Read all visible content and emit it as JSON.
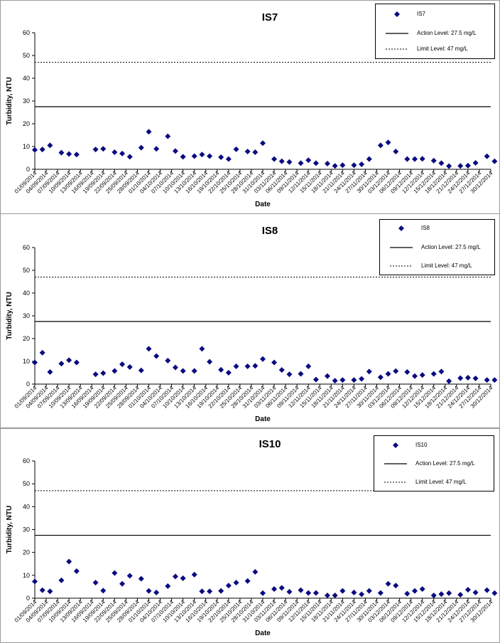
{
  "legend_labels": {
    "action": "Action Level: 27.5 mg/L",
    "limit": "Limit Level: 47 mg/L"
  },
  "colors": {
    "marker": "#0a0a80",
    "line": "#000000"
  },
  "chart_data": [
    {
      "type": "scatter",
      "title": "IS7",
      "xlabel": "Date",
      "ylabel": "Turbidity, NTU",
      "ylim": [
        0,
        60
      ],
      "yticks": [
        0,
        10,
        20,
        30,
        40,
        50,
        60
      ],
      "grid": false,
      "legend_position": "top-right",
      "x_range": [
        "2014-09-01",
        "2014-12-30"
      ],
      "xtick_labels": [
        "01/09/2014",
        "04/09/2014",
        "07/09/2014",
        "10/09/2014",
        "13/09/2014",
        "16/09/2014",
        "19/09/2014",
        "22/09/2014",
        "25/09/2014",
        "28/09/2014",
        "01/10/2014",
        "04/10/2014",
        "07/10/2014",
        "10/10/2014",
        "13/10/2014",
        "16/10/2014",
        "19/10/2014",
        "22/10/2014",
        "25/10/2014",
        "28/10/2014",
        "31/10/2014",
        "03/11/2014",
        "06/11/2014",
        "09/11/2014",
        "12/11/2014",
        "15/11/2014",
        "18/11/2014",
        "21/11/2014",
        "24/11/2014",
        "27/11/2014",
        "30/11/2014",
        "03/12/2014",
        "06/12/2014",
        "09/12/2014",
        "12/12/2014",
        "15/12/2014",
        "18/12/2014",
        "21/12/2014",
        "24/12/2014",
        "27/12/2014",
        "30/12/2014"
      ],
      "series": [
        {
          "name": "IS7",
          "kind": "points",
          "points": [
            [
              "2014-09-01",
              8.5
            ],
            [
              "2014-09-03",
              8.7
            ],
            [
              "2014-09-05",
              10.5
            ],
            [
              "2014-09-08",
              7.3
            ],
            [
              "2014-09-10",
              6.7
            ],
            [
              "2014-09-12",
              6.5
            ],
            [
              "2014-09-17",
              8.7
            ],
            [
              "2014-09-19",
              9.0
            ],
            [
              "2014-09-22",
              7.5
            ],
            [
              "2014-09-24",
              6.9
            ],
            [
              "2014-09-26",
              5.5
            ],
            [
              "2014-09-29",
              9.5
            ],
            [
              "2014-10-01",
              16.5
            ],
            [
              "2014-10-03",
              9.0
            ],
            [
              "2014-10-06",
              14.5
            ],
            [
              "2014-10-08",
              8.0
            ],
            [
              "2014-10-10",
              5.5
            ],
            [
              "2014-10-13",
              5.8
            ],
            [
              "2014-10-15",
              6.5
            ],
            [
              "2014-10-17",
              5.8
            ],
            [
              "2014-10-20",
              5.3
            ],
            [
              "2014-10-22",
              4.5
            ],
            [
              "2014-10-24",
              8.8
            ],
            [
              "2014-10-27",
              7.8
            ],
            [
              "2014-10-29",
              7.5
            ],
            [
              "2014-10-31",
              11.5
            ],
            [
              "2014-11-03",
              4.5
            ],
            [
              "2014-11-05",
              3.5
            ],
            [
              "2014-11-07",
              3.2
            ],
            [
              "2014-11-10",
              2.7
            ],
            [
              "2014-11-12",
              4.0
            ],
            [
              "2014-11-14",
              2.7
            ],
            [
              "2014-11-17",
              2.5
            ],
            [
              "2014-11-19",
              1.5
            ],
            [
              "2014-11-21",
              1.8
            ],
            [
              "2014-11-24",
              1.8
            ],
            [
              "2014-11-26",
              2.2
            ],
            [
              "2014-11-28",
              4.5
            ],
            [
              "2014-12-01",
              10.5
            ],
            [
              "2014-12-03",
              11.8
            ],
            [
              "2014-12-05",
              7.8
            ],
            [
              "2014-12-08",
              4.5
            ],
            [
              "2014-12-10",
              4.5
            ],
            [
              "2014-12-12",
              4.6
            ],
            [
              "2014-12-15",
              3.8
            ],
            [
              "2014-12-17",
              2.7
            ],
            [
              "2014-12-19",
              1.4
            ],
            [
              "2014-12-22",
              1.5
            ],
            [
              "2014-12-24",
              1.6
            ],
            [
              "2014-12-26",
              2.8
            ],
            [
              "2014-12-29",
              5.7
            ],
            [
              "2014-12-31",
              3.5
            ]
          ]
        },
        {
          "name": "Action Level: 27.5 mg/L",
          "kind": "hline",
          "y": 27.5,
          "style": "solid"
        },
        {
          "name": "Limit Level: 47 mg/L",
          "kind": "hline",
          "y": 47,
          "style": "dashed"
        }
      ]
    },
    {
      "type": "scatter",
      "title": "IS8",
      "xlabel": "Date",
      "ylabel": "Turbidity, NTU",
      "ylim": [
        0,
        60
      ],
      "yticks": [
        0,
        10,
        20,
        30,
        40,
        50,
        60
      ],
      "grid": false,
      "legend_position": "top-right",
      "x_range": [
        "2014-09-01",
        "2014-12-30"
      ],
      "xtick_labels": [
        "01/09/2014",
        "04/09/2014",
        "07/09/2014",
        "10/09/2014",
        "13/09/2014",
        "16/09/2014",
        "19/09/2014",
        "22/09/2014",
        "25/09/2014",
        "28/09/2014",
        "01/10/2014",
        "04/10/2014",
        "07/10/2014",
        "10/10/2014",
        "13/10/2014",
        "16/10/2014",
        "19/10/2014",
        "22/10/2014",
        "25/10/2014",
        "28/10/2014",
        "31/10/2014",
        "03/11/2014",
        "06/11/2014",
        "09/11/2014",
        "12/11/2014",
        "15/11/2014",
        "18/11/2014",
        "21/11/2014",
        "24/11/2014",
        "27/11/2014",
        "30/11/2014",
        "03/12/2014",
        "06/12/2014",
        "09/12/2014",
        "12/12/2014",
        "15/12/2014",
        "18/12/2014",
        "21/12/2014",
        "24/12/2014",
        "27/12/2014",
        "30/12/2014"
      ],
      "series": [
        {
          "name": "IS8",
          "kind": "points",
          "points": [
            [
              "2014-09-01",
              9.5
            ],
            [
              "2014-09-03",
              13.8
            ],
            [
              "2014-09-05",
              5.3
            ],
            [
              "2014-09-08",
              9.0
            ],
            [
              "2014-09-10",
              10.5
            ],
            [
              "2014-09-12",
              9.5
            ],
            [
              "2014-09-17",
              4.3
            ],
            [
              "2014-09-19",
              4.8
            ],
            [
              "2014-09-22",
              5.8
            ],
            [
              "2014-09-24",
              8.7
            ],
            [
              "2014-09-26",
              7.5
            ],
            [
              "2014-09-29",
              6.0
            ],
            [
              "2014-10-01",
              15.5
            ],
            [
              "2014-10-03",
              12.3
            ],
            [
              "2014-10-06",
              10.3
            ],
            [
              "2014-10-08",
              7.3
            ],
            [
              "2014-10-10",
              5.8
            ],
            [
              "2014-10-13",
              5.8
            ],
            [
              "2014-10-15",
              15.5
            ],
            [
              "2014-10-17",
              9.8
            ],
            [
              "2014-10-20",
              6.3
            ],
            [
              "2014-10-22",
              5.0
            ],
            [
              "2014-10-24",
              7.8
            ],
            [
              "2014-10-27",
              7.8
            ],
            [
              "2014-10-29",
              8.0
            ],
            [
              "2014-10-31",
              11.0
            ],
            [
              "2014-11-03",
              9.5
            ],
            [
              "2014-11-05",
              6.2
            ],
            [
              "2014-11-07",
              4.3
            ],
            [
              "2014-11-10",
              4.5
            ],
            [
              "2014-11-12",
              7.8
            ],
            [
              "2014-11-14",
              2.0
            ],
            [
              "2014-11-17",
              3.5
            ],
            [
              "2014-11-19",
              1.5
            ],
            [
              "2014-11-21",
              1.8
            ],
            [
              "2014-11-24",
              1.8
            ],
            [
              "2014-11-26",
              2.3
            ],
            [
              "2014-11-28",
              5.5
            ],
            [
              "2014-12-01",
              3.0
            ],
            [
              "2014-12-03",
              4.5
            ],
            [
              "2014-12-05",
              5.7
            ],
            [
              "2014-12-08",
              5.3
            ],
            [
              "2014-12-10",
              3.5
            ],
            [
              "2014-12-12",
              4.0
            ],
            [
              "2014-12-15",
              4.5
            ],
            [
              "2014-12-17",
              5.5
            ],
            [
              "2014-12-19",
              1.3
            ],
            [
              "2014-12-22",
              2.6
            ],
            [
              "2014-12-24",
              2.8
            ],
            [
              "2014-12-26",
              2.5
            ],
            [
              "2014-12-29",
              1.8
            ],
            [
              "2014-12-31",
              1.8
            ]
          ]
        },
        {
          "name": "Action Level: 27.5 mg/L",
          "kind": "hline",
          "y": 27.5,
          "style": "solid"
        },
        {
          "name": "Limit Level: 47 mg/L",
          "kind": "hline",
          "y": 47,
          "style": "dashed"
        }
      ]
    },
    {
      "type": "scatter",
      "title": "IS10",
      "xlabel": "Date",
      "ylabel": "Turbidity, NTU",
      "ylim": [
        0,
        60
      ],
      "yticks": [
        0,
        10,
        20,
        30,
        40,
        50,
        60
      ],
      "grid": false,
      "legend_position": "top-right",
      "x_range": [
        "2014-09-01",
        "2014-12-30"
      ],
      "xtick_labels": [
        "01/09/2014",
        "04/09/2014",
        "07/09/2014",
        "10/09/2014",
        "13/09/2014",
        "16/09/2014",
        "19/09/2014",
        "22/09/2014",
        "25/09/2014",
        "28/09/2014",
        "01/10/2014",
        "04/10/2014",
        "07/10/2014",
        "10/10/2014",
        "13/10/2014",
        "16/10/2014",
        "19/10/2014",
        "22/10/2014",
        "25/10/2014",
        "28/10/2014",
        "31/10/2014",
        "03/11/2014",
        "06/11/2014",
        "09/11/2014",
        "12/11/2014",
        "15/11/2014",
        "18/11/2014",
        "21/11/2014",
        "24/11/2014",
        "27/11/2014",
        "30/11/2014",
        "03/12/2014",
        "06/12/2014",
        "09/12/2014",
        "12/12/2014",
        "15/12/2014",
        "18/12/2014",
        "21/12/2014",
        "24/12/2014",
        "27/12/2014",
        "30/12/2014"
      ],
      "series": [
        {
          "name": "IS10",
          "kind": "points",
          "points": [
            [
              "2014-09-01",
              7.3
            ],
            [
              "2014-09-03",
              3.5
            ],
            [
              "2014-09-05",
              3.0
            ],
            [
              "2014-09-08",
              7.8
            ],
            [
              "2014-09-10",
              16.0
            ],
            [
              "2014-09-12",
              11.8
            ],
            [
              "2014-09-17",
              6.8
            ],
            [
              "2014-09-19",
              3.3
            ],
            [
              "2014-09-22",
              11.0
            ],
            [
              "2014-09-24",
              6.3
            ],
            [
              "2014-09-26",
              9.8
            ],
            [
              "2014-09-29",
              8.5
            ],
            [
              "2014-10-01",
              3.2
            ],
            [
              "2014-10-03",
              2.5
            ],
            [
              "2014-10-06",
              5.3
            ],
            [
              "2014-10-08",
              9.5
            ],
            [
              "2014-10-10",
              8.7
            ],
            [
              "2014-10-13",
              10.3
            ],
            [
              "2014-10-15",
              3.0
            ],
            [
              "2014-10-17",
              3.0
            ],
            [
              "2014-10-20",
              3.2
            ],
            [
              "2014-10-22",
              5.5
            ],
            [
              "2014-10-24",
              6.8
            ],
            [
              "2014-10-27",
              7.5
            ],
            [
              "2014-10-29",
              11.5
            ],
            [
              "2014-10-31",
              2.2
            ],
            [
              "2014-11-03",
              4.0
            ],
            [
              "2014-11-05",
              4.5
            ],
            [
              "2014-11-07",
              2.8
            ],
            [
              "2014-11-10",
              3.5
            ],
            [
              "2014-11-12",
              2.3
            ],
            [
              "2014-11-14",
              2.3
            ],
            [
              "2014-11-17",
              1.2
            ],
            [
              "2014-11-19",
              1.2
            ],
            [
              "2014-11-21",
              3.2
            ],
            [
              "2014-11-24",
              2.5
            ],
            [
              "2014-11-26",
              1.7
            ],
            [
              "2014-11-28",
              3.2
            ],
            [
              "2014-12-01",
              2.3
            ],
            [
              "2014-12-03",
              6.3
            ],
            [
              "2014-12-05",
              5.5
            ],
            [
              "2014-12-08",
              2.0
            ],
            [
              "2014-12-10",
              3.2
            ],
            [
              "2014-12-12",
              4.0
            ],
            [
              "2014-12-15",
              1.2
            ],
            [
              "2014-12-17",
              1.8
            ],
            [
              "2014-12-19",
              2.2
            ],
            [
              "2014-12-22",
              1.5
            ],
            [
              "2014-12-24",
              3.7
            ],
            [
              "2014-12-26",
              2.5
            ],
            [
              "2014-12-29",
              3.5
            ],
            [
              "2014-12-31",
              2.2
            ]
          ]
        },
        {
          "name": "Action Level: 27.5 mg/L",
          "kind": "hline",
          "y": 27.5,
          "style": "solid"
        },
        {
          "name": "Limit Level: 47 mg/L",
          "kind": "hline",
          "y": 47,
          "style": "dashed"
        }
      ]
    }
  ]
}
